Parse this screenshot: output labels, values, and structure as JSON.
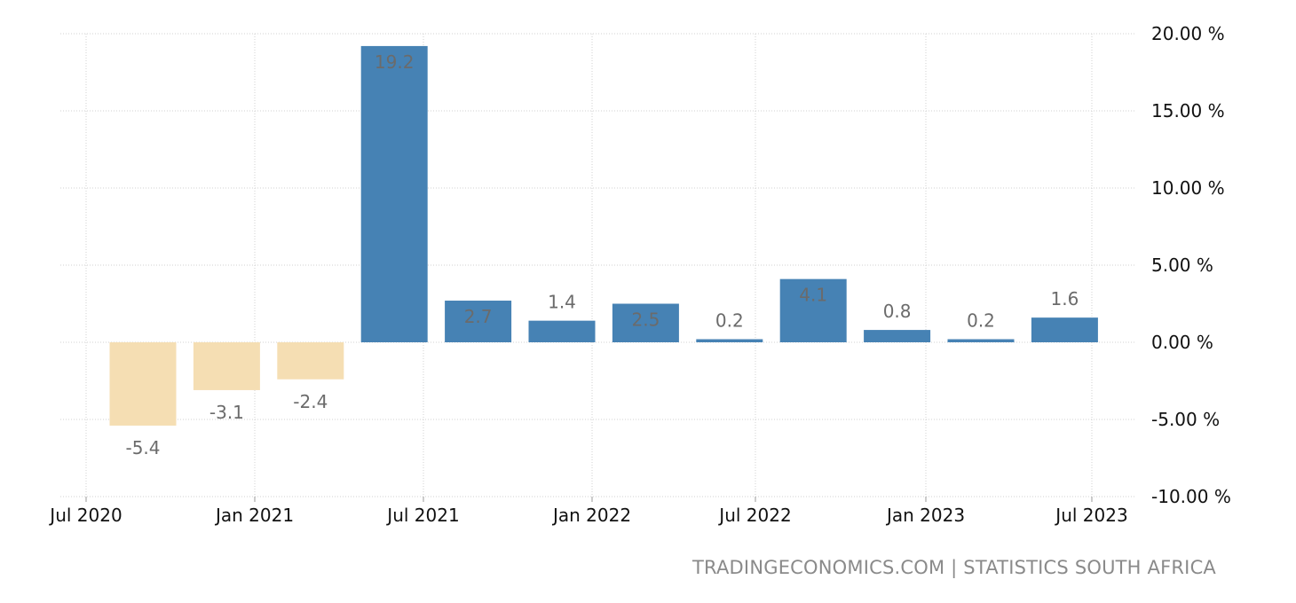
{
  "chart_data": {
    "type": "bar",
    "categories": [
      "Q3 2020",
      "Q4 2020",
      "Q1 2021",
      "Q2 2021",
      "Q3 2021",
      "Q4 2021",
      "Q1 2022",
      "Q2 2022",
      "Q3 2022",
      "Q4 2022",
      "Q1 2023",
      "Q2 2023"
    ],
    "values": [
      -5.4,
      -3.1,
      -2.4,
      19.2,
      2.7,
      1.4,
      2.5,
      0.2,
      4.1,
      0.8,
      0.2,
      1.6
    ],
    "data_labels": [
      "-5.4",
      "-3.1",
      "-2.4",
      "19.2",
      "2.7",
      "1.4",
      "2.5",
      "0.2",
      "4.1",
      "0.8",
      "0.2",
      "1.6"
    ],
    "x_tick_labels": [
      "Jul 2020",
      "Jan 2021",
      "Jul 2021",
      "Jan 2022",
      "Jul 2022",
      "Jan 2023",
      "Jul 2023"
    ],
    "y_tick_values": [
      20,
      15,
      10,
      5,
      0,
      -5,
      -10
    ],
    "y_tick_labels": [
      "20.00 %",
      "15.00 %",
      "10.00 %",
      "5.00 %",
      "0.00 %",
      "-5.00 %",
      "-10.00 %"
    ],
    "ylim": [
      -10,
      20
    ],
    "grid": true,
    "y_axis_position": "right",
    "colors": {
      "positive": "#4682b4",
      "negative": "#f5deb3",
      "label": "#6b6b6b"
    }
  },
  "source_text": "TRADINGECONOMICS.COM | STATISTICS SOUTH AFRICA"
}
